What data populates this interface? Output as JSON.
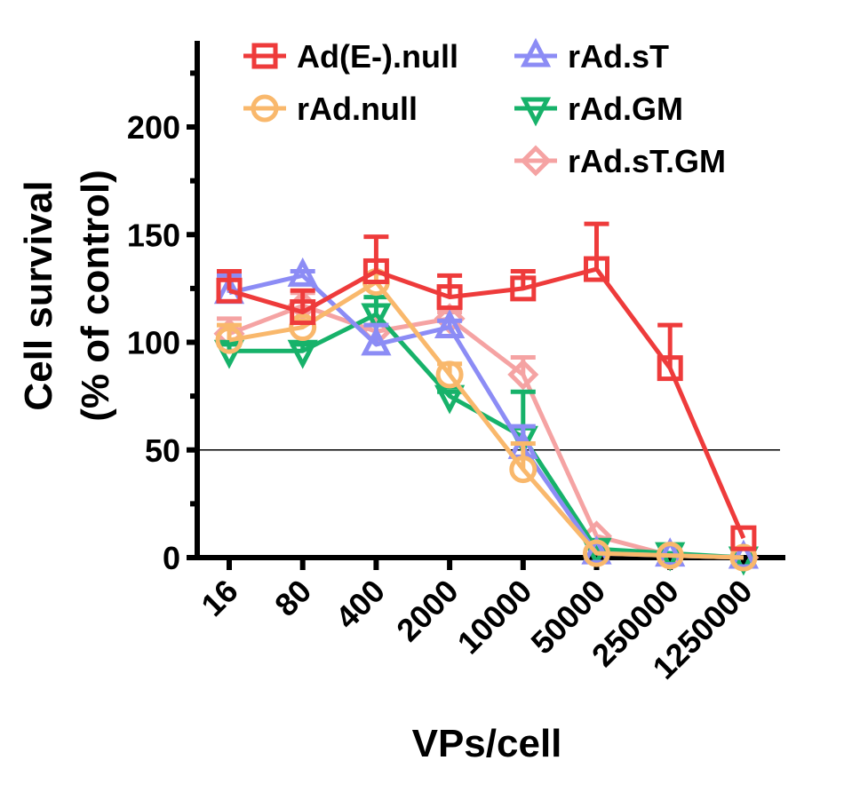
{
  "chart_data": {
    "type": "line",
    "title": "",
    "xlabel": "VPs/cell",
    "ylabel": [
      "Cell survival",
      "(% of control)"
    ],
    "categories": [
      "16",
      "80",
      "400",
      "2000",
      "10000",
      "50000",
      "250000",
      "1250000"
    ],
    "yticks": [
      0,
      50,
      100,
      150,
      200
    ],
    "ylim": [
      0,
      240
    ],
    "reference_line": 50,
    "grid": false,
    "legend_position": "top",
    "series": [
      {
        "name": "Ad(E-).null",
        "color": "#ee3b3b",
        "marker": "square",
        "values": [
          124,
          114,
          133,
          121,
          125,
          134,
          88,
          9
        ],
        "errors": [
          9,
          10,
          16,
          10,
          8,
          21,
          20,
          0
        ]
      },
      {
        "name": "rAd.null",
        "color": "#f9b86c",
        "marker": "circle",
        "values": [
          101,
          107,
          128,
          85,
          41,
          2,
          1,
          0
        ],
        "errors": [
          7,
          3,
          4,
          5,
          12,
          0,
          0,
          0
        ]
      },
      {
        "name": "rAd.sT",
        "color": "#8c8cf5",
        "marker": "triangle-up",
        "values": [
          123,
          131,
          99,
          107,
          51,
          2,
          1,
          0
        ],
        "errors": [
          8,
          2,
          9,
          3,
          10,
          0,
          0,
          0
        ]
      },
      {
        "name": "rAd.GM",
        "color": "#17b26a",
        "marker": "triangle-down",
        "values": [
          96,
          96,
          113,
          75,
          56,
          4,
          2,
          0
        ],
        "errors": [
          3,
          3,
          8,
          2,
          21,
          0,
          0,
          0
        ]
      },
      {
        "name": "rAd.sT.GM",
        "color": "#f5a3a3",
        "marker": "diamond",
        "values": [
          104,
          117,
          105,
          111,
          85,
          10,
          1,
          0
        ],
        "errors": [
          7,
          6,
          3,
          3,
          8,
          0,
          0,
          0
        ]
      }
    ]
  }
}
